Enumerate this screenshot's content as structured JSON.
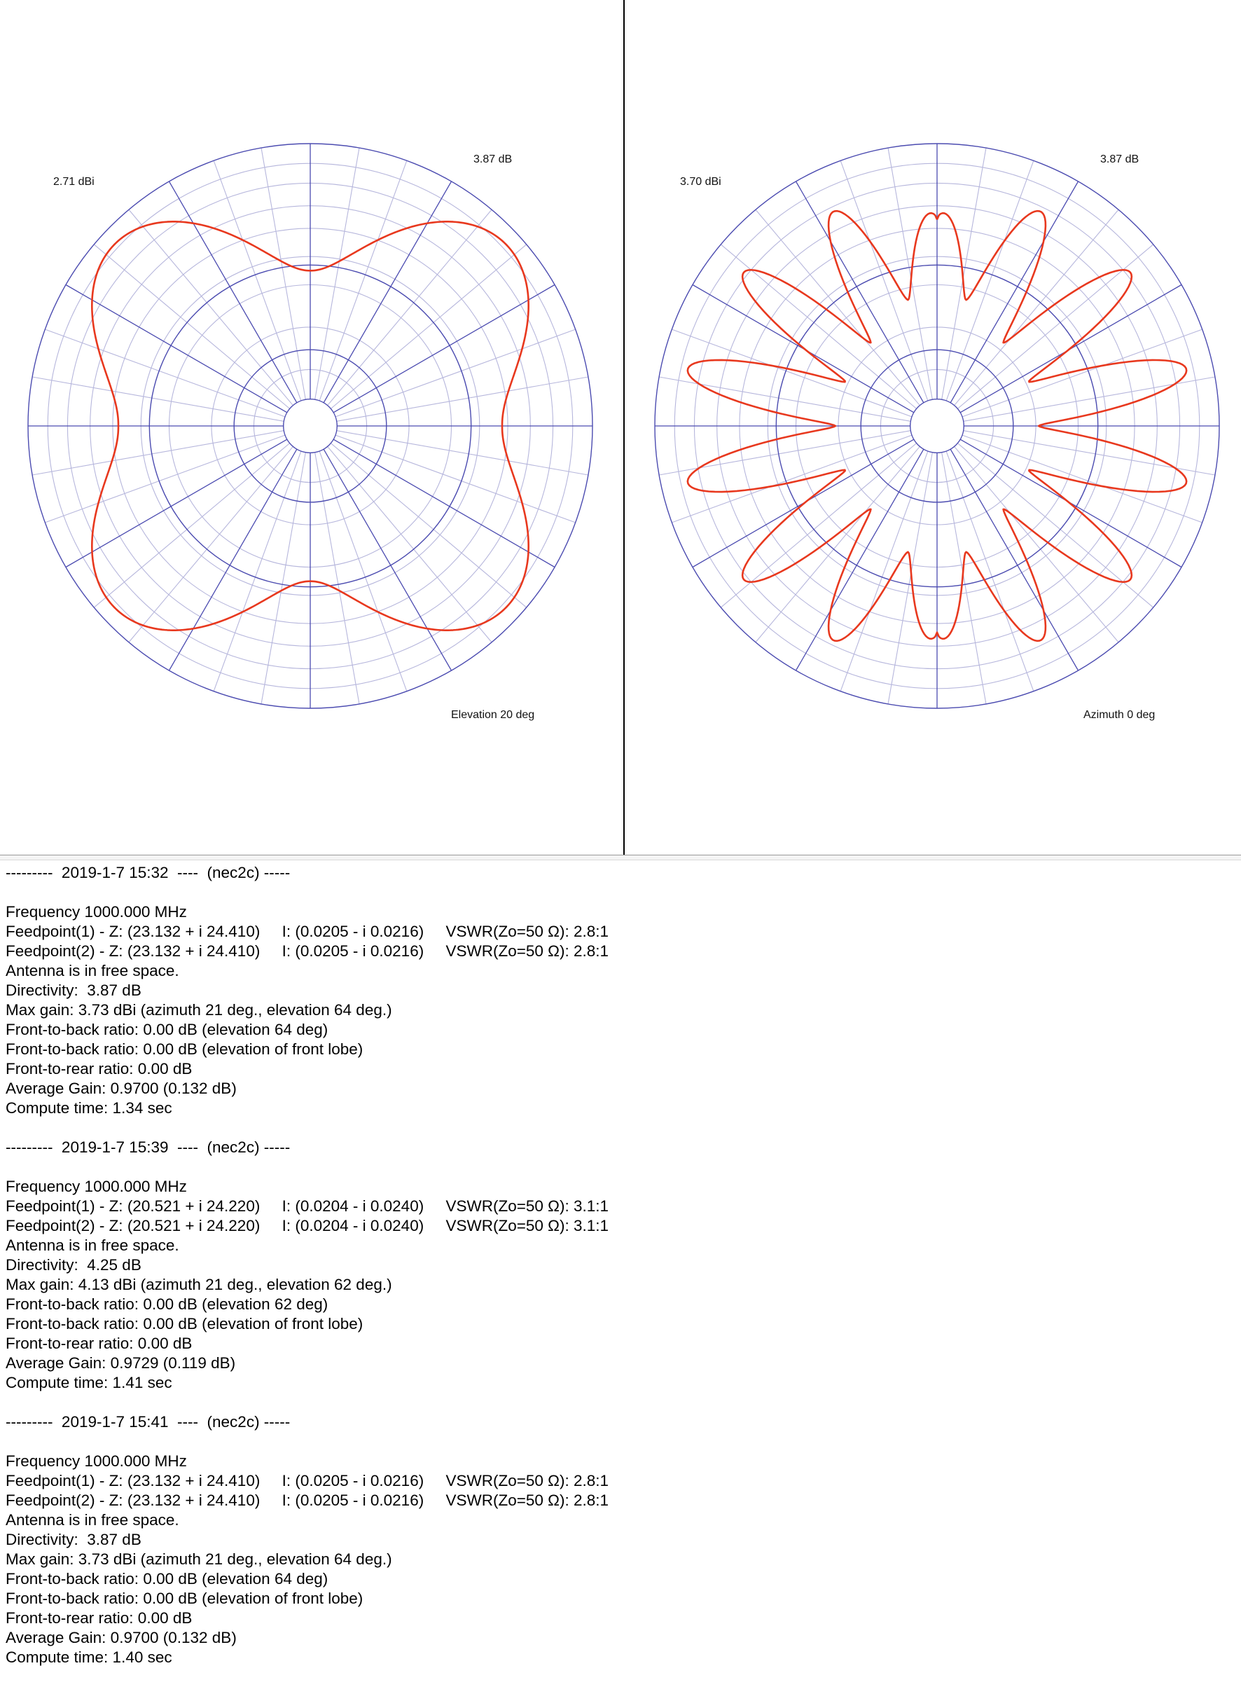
{
  "plots": {
    "left": {
      "gain_label": "2.71 dBi",
      "max_label": "3.87 dB",
      "caption": "Elevation 20 deg"
    },
    "right": {
      "gain_label": "3.70 dBi",
      "max_label": "3.87 dB",
      "caption": "Azimuth 0 deg"
    },
    "colors": {
      "grid": "#4b4bb0",
      "grid_light": "#b6b6dc",
      "pattern": "#e8381e"
    }
  },
  "log": [
    {
      "header": "---------  2019-1-7 15:32  ----  (nec2c) -----",
      "lines": [
        "Frequency 1000.000 MHz",
        "Feedpoint(1) - Z: (23.132 + i 24.410)     I: (0.0205 - i 0.0216)     VSWR(Zo=50 Ω): 2.8:1",
        "Feedpoint(2) - Z: (23.132 + i 24.410)     I: (0.0205 - i 0.0216)     VSWR(Zo=50 Ω): 2.8:1",
        "Antenna is in free space.",
        "Directivity:  3.87 dB",
        "Max gain: 3.73 dBi (azimuth 21 deg., elevation 64 deg.)",
        "Front-to-back ratio: 0.00 dB (elevation 64 deg)",
        "Front-to-back ratio: 0.00 dB (elevation of front lobe)",
        "Front-to-rear ratio: 0.00 dB",
        "Average Gain: 0.9700 (0.132 dB)",
        "Compute time: 1.34 sec"
      ]
    },
    {
      "header": "---------  2019-1-7 15:39  ----  (nec2c) -----",
      "lines": [
        "Frequency 1000.000 MHz",
        "Feedpoint(1) - Z: (20.521 + i 24.220)     I: (0.0204 - i 0.0240)     VSWR(Zo=50 Ω): 3.1:1",
        "Feedpoint(2) - Z: (20.521 + i 24.220)     I: (0.0204 - i 0.0240)     VSWR(Zo=50 Ω): 3.1:1",
        "Antenna is in free space.",
        "Directivity:  4.25 dB",
        "Max gain: 4.13 dBi (azimuth 21 deg., elevation 62 deg.)",
        "Front-to-back ratio: 0.00 dB (elevation 62 deg)",
        "Front-to-back ratio: 0.00 dB (elevation of front lobe)",
        "Front-to-rear ratio: 0.00 dB",
        "Average Gain: 0.9729 (0.119 dB)",
        "Compute time: 1.41 sec"
      ]
    },
    {
      "header": "---------  2019-1-7 15:41  ----  (nec2c) -----",
      "lines": [
        "Frequency 1000.000 MHz",
        "Feedpoint(1) - Z: (23.132 + i 24.410)     I: (0.0205 - i 0.0216)     VSWR(Zo=50 Ω): 2.8:1",
        "Feedpoint(2) - Z: (23.132 + i 24.410)     I: (0.0205 - i 0.0216)     VSWR(Zo=50 Ω): 2.8:1",
        "Antenna is in free space.",
        "Directivity:  3.87 dB",
        "Max gain: 3.73 dBi (azimuth 21 deg., elevation 64 deg.)",
        "Front-to-back ratio: 0.00 dB (elevation 64 deg)",
        "Front-to-back ratio: 0.00 dB (elevation of front lobe)",
        "Front-to-rear ratio: 0.00 dB",
        "Average Gain: 0.9700 (0.132 dB)",
        "Compute time: 1.40 sec"
      ]
    }
  ]
}
